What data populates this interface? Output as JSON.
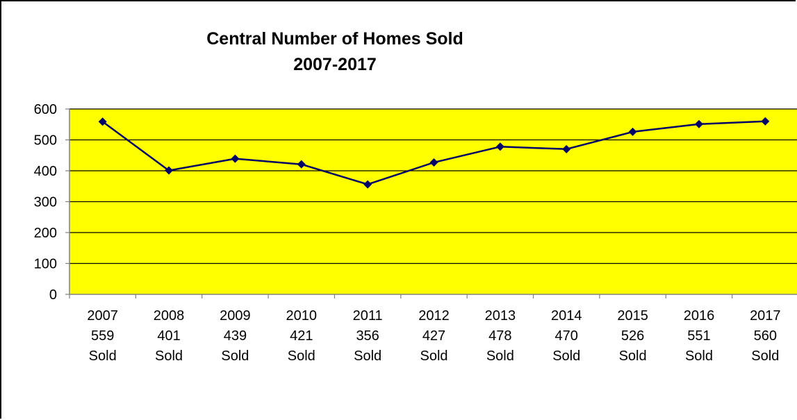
{
  "chart_data": {
    "type": "line",
    "title": "Central Number of Homes Sold",
    "subtitle": "2007-2017",
    "categories": [
      [
        "2007",
        "559",
        "Sold"
      ],
      [
        "2008",
        "401",
        "Sold"
      ],
      [
        "2009",
        "439",
        "Sold"
      ],
      [
        "2010",
        "421",
        "Sold"
      ],
      [
        "2011",
        "356",
        "Sold"
      ],
      [
        "2012",
        "427",
        "Sold"
      ],
      [
        "2013",
        "478",
        "Sold"
      ],
      [
        "2014",
        "470",
        "Sold"
      ],
      [
        "2015",
        "526",
        "Sold"
      ],
      [
        "2016",
        "551",
        "Sold"
      ],
      [
        "2017",
        "560",
        "Sold"
      ]
    ],
    "series": [
      {
        "values": [
          559,
          401,
          439,
          421,
          356,
          427,
          478,
          470,
          526,
          551,
          560
        ]
      }
    ],
    "ylim": [
      0,
      600
    ],
    "yticks": [
      "0",
      "100",
      "200",
      "300",
      "400",
      "500",
      "600"
    ],
    "grid": true,
    "legend": "none",
    "colors": {
      "plot_background": "#FFFF00",
      "line": "#000066",
      "marker": "#000066",
      "gridline": "#000000",
      "axis": "#808080"
    }
  }
}
